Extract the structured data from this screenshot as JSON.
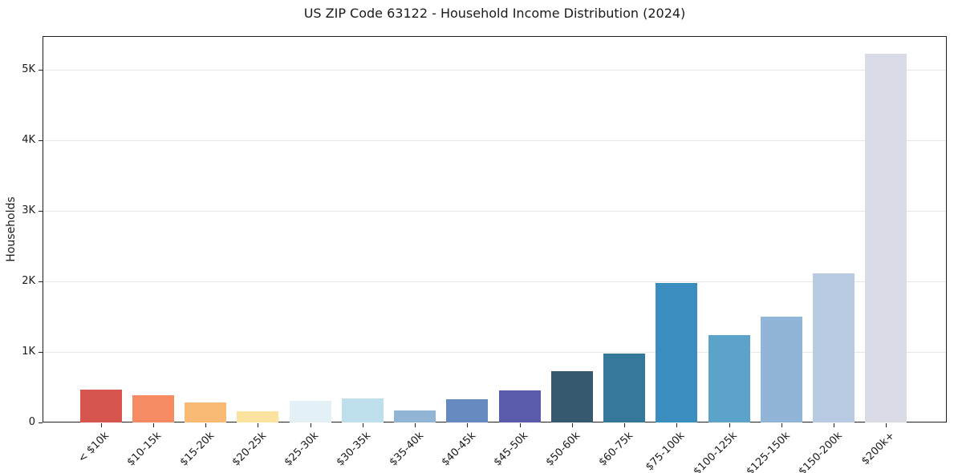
{
  "chart_data": {
    "type": "bar",
    "title": "US ZIP Code 63122 - Household Income Distribution (2024)",
    "xlabel": "",
    "ylabel": "Households",
    "categories": [
      "< $10k",
      "$10-15k",
      "$15-20k",
      "$20-25k",
      "$25-30k",
      "$30-35k",
      "$35-40k",
      "$40-45k",
      "$45-50k",
      "$50-60k",
      "$60-75k",
      "$75-100k",
      "$100-125k",
      "$125-150k",
      "$150-200k",
      "$200k+"
    ],
    "values": [
      465,
      385,
      280,
      160,
      310,
      345,
      170,
      335,
      450,
      730,
      975,
      1975,
      1240,
      1500,
      2110,
      5225
    ],
    "bar_colors": [
      "#d6564f",
      "#f58a63",
      "#f9bb74",
      "#fce3a0",
      "#e3f1f6",
      "#bedfec",
      "#92b4d5",
      "#6689bf",
      "#5a5cab",
      "#37596f",
      "#35789c",
      "#3a8ebf",
      "#5ba3c9",
      "#90b5d8",
      "#b8cbe2",
      "#d9dbe7"
    ],
    "ylim": [
      0,
      5480
    ],
    "yticks": [
      0,
      1000,
      2000,
      3000,
      4000,
      5000
    ],
    "ytick_labels": [
      "0",
      "1K",
      "2K",
      "3K",
      "4K",
      "5K"
    ],
    "grid": "horizontal",
    "gridline_color": "#e7e7e7",
    "legend": "none",
    "x_tick_rotation": 45,
    "text_color": "#1a1a1a",
    "background_color": "#ffffff"
  }
}
